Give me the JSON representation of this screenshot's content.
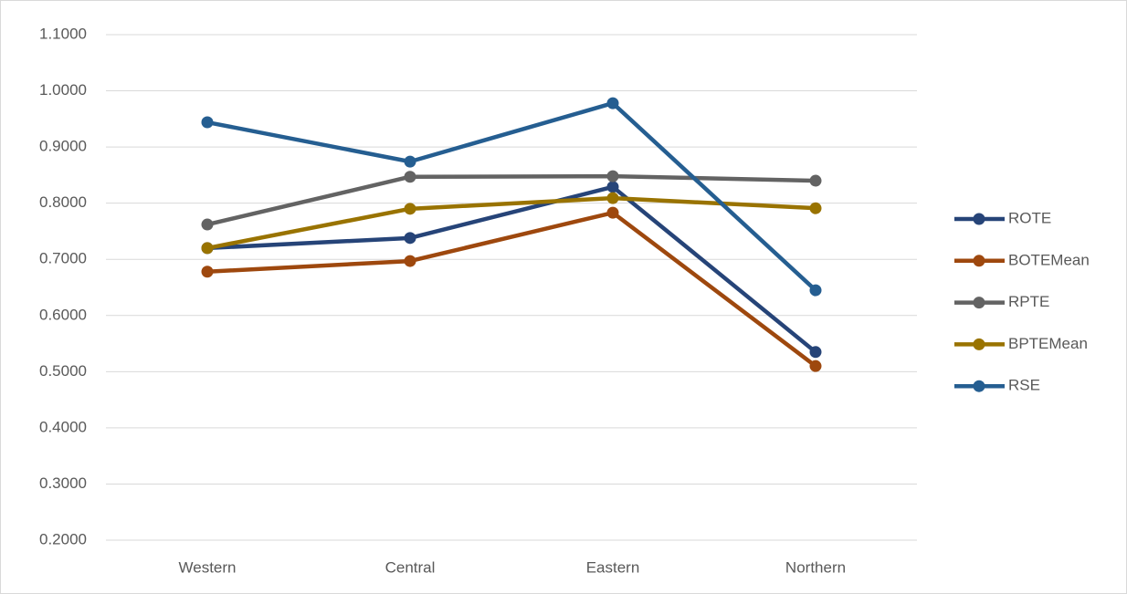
{
  "chart_data": {
    "type": "line",
    "categories": [
      "Western",
      "Central",
      "Eastern",
      "Northern"
    ],
    "series": [
      {
        "name": "ROTE",
        "color": "#264478",
        "values": [
          0.72,
          0.738,
          0.829,
          0.535
        ]
      },
      {
        "name": "BOTEMean",
        "color": "#9e480e",
        "values": [
          0.678,
          0.697,
          0.783,
          0.51
        ]
      },
      {
        "name": "RPTE",
        "color": "#636363",
        "values": [
          0.762,
          0.847,
          0.848,
          0.84
        ]
      },
      {
        "name": "BPTEMean",
        "color": "#997300",
        "values": [
          0.72,
          0.79,
          0.809,
          0.791
        ]
      },
      {
        "name": "RSE",
        "color": "#255e91",
        "values": [
          0.944,
          0.874,
          0.978,
          0.645
        ]
      }
    ],
    "ylim": [
      0.2,
      1.1
    ],
    "yticks": [
      {
        "value": 0.2,
        "label": "0.2000"
      },
      {
        "value": 0.3,
        "label": "0.3000"
      },
      {
        "value": 0.4,
        "label": "0.4000"
      },
      {
        "value": 0.5,
        "label": "0.5000"
      },
      {
        "value": 0.6,
        "label": "0.6000"
      },
      {
        "value": 0.7,
        "label": "0.7000"
      },
      {
        "value": 0.8,
        "label": "0.8000"
      },
      {
        "value": 0.9,
        "label": "0.9000"
      },
      {
        "value": 1.0,
        "label": "1.0000"
      },
      {
        "value": 1.1,
        "label": "1.1000"
      }
    ],
    "grid": true,
    "legend": "right"
  }
}
